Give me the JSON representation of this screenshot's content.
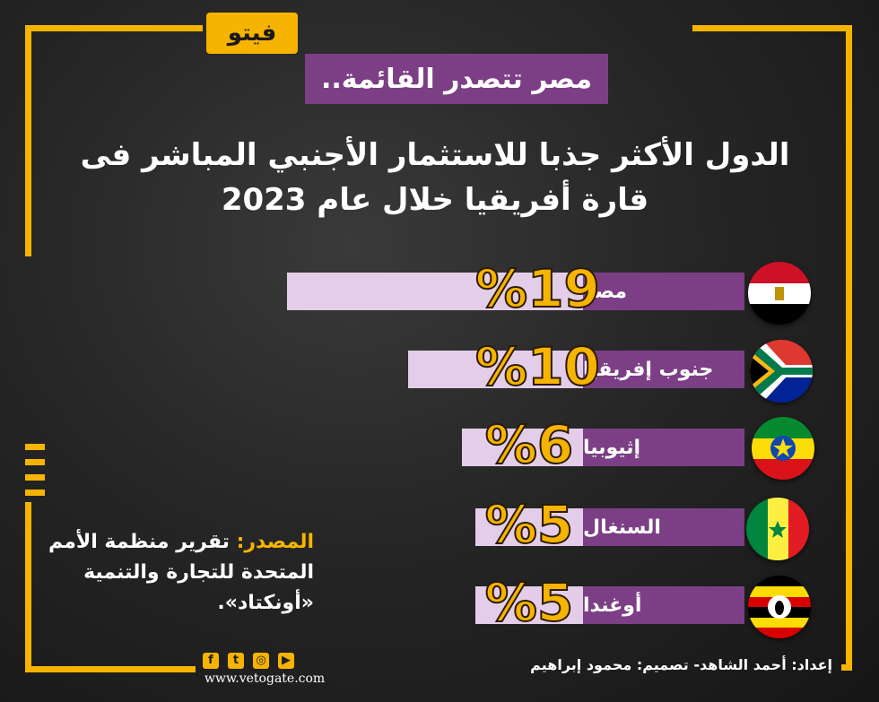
{
  "logo": {
    "text": "فيتو"
  },
  "subtitle": "مصر تتصدر القائمة..",
  "title_line1": "الدول الأكثر جذبا للاستثمار الأجنبي المباشر فى",
  "title_line2": "قارة أفريقيا خلال عام 2023",
  "chart_data": {
    "type": "bar",
    "orientation": "horizontal",
    "categories": [
      "مصر",
      "جنوب إفريقيا",
      "إثيوبيا",
      "السنغال",
      "أوغندا"
    ],
    "values": [
      19,
      10,
      6,
      5,
      5
    ],
    "value_labels": [
      "%19",
      "%10",
      "%6",
      "%5",
      "%5"
    ],
    "unit": "%"
  },
  "flags": [
    {
      "name": "egypt-flag-icon",
      "colors": [
        "#ce1126",
        "#ffffff",
        "#000000"
      ],
      "emblem": "#c09300"
    },
    {
      "name": "south-africa-flag-icon",
      "colors": [
        "#007a4d",
        "#de3831",
        "#002395",
        "#000000",
        "#ffb612",
        "#ffffff"
      ]
    },
    {
      "name": "ethiopia-flag-icon",
      "colors": [
        "#078930",
        "#fcdd09",
        "#da121a",
        "#0f47af"
      ]
    },
    {
      "name": "senegal-flag-icon",
      "colors": [
        "#00853f",
        "#fdef42",
        "#e31b23"
      ]
    },
    {
      "name": "uganda-flag-icon",
      "colors": [
        "#000000",
        "#fcdc04",
        "#d90000",
        "#ffffff"
      ]
    }
  ],
  "source": {
    "label": "المصدر:",
    "text": "تقرير منظمة الأمم المتحدة للتجارة والتنمية «أونكتاد»."
  },
  "credits": "إعداد: أحمد الشاهد- تصميم: محمود إبراهيم",
  "website": "www.vetogate.com",
  "social": {
    "facebook": "f",
    "twitter": "t",
    "instagram": "◎",
    "youtube": "▶"
  },
  "colors": {
    "accent_yellow": "#f6b400",
    "purple": "#7c3f86",
    "track": "#e3cde8",
    "background": "#1f1f1f"
  }
}
